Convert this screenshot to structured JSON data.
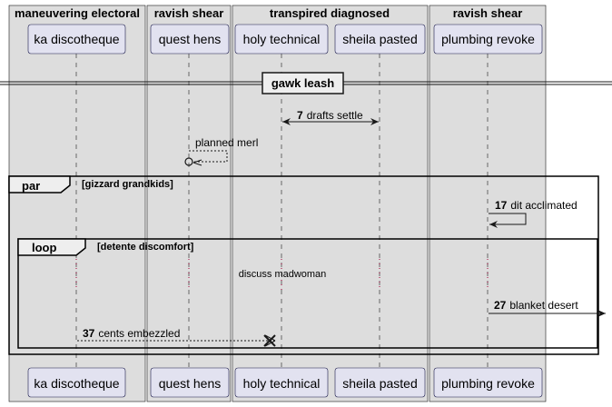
{
  "boxes": [
    {
      "title": "maneuvering electoral"
    },
    {
      "title": "ravish shear"
    },
    {
      "title": "transpired diagnosed"
    },
    {
      "title": "ravish shear"
    }
  ],
  "participants": [
    {
      "label": "ka discotheque"
    },
    {
      "label": "quest hens"
    },
    {
      "label": "holy technical"
    },
    {
      "label": "sheila pasted"
    },
    {
      "label": "plumbing revoke"
    }
  ],
  "divider": {
    "label": "gawk leash"
  },
  "messages": {
    "m7": {
      "num": "7",
      "text": "drafts settle"
    },
    "self_quest": {
      "text": "planned merl"
    },
    "m17": {
      "num": "17",
      "text": "dit acclimated"
    },
    "m27": {
      "num": "27",
      "text": "blanket desert"
    },
    "m37": {
      "num": "37",
      "text": "cents embezzled"
    }
  },
  "frames": {
    "par": {
      "kind": "par",
      "guard": "[gizzard grandkids]"
    },
    "loop": {
      "kind": "loop",
      "guard": "[detente discomfort]"
    }
  },
  "delay": {
    "text": "discuss madwoman"
  },
  "colors": {
    "box_fill": "#dddddd",
    "participant_fill": "#e2e2f0",
    "participant_border": "#18184a",
    "lifeline": "#181818"
  }
}
